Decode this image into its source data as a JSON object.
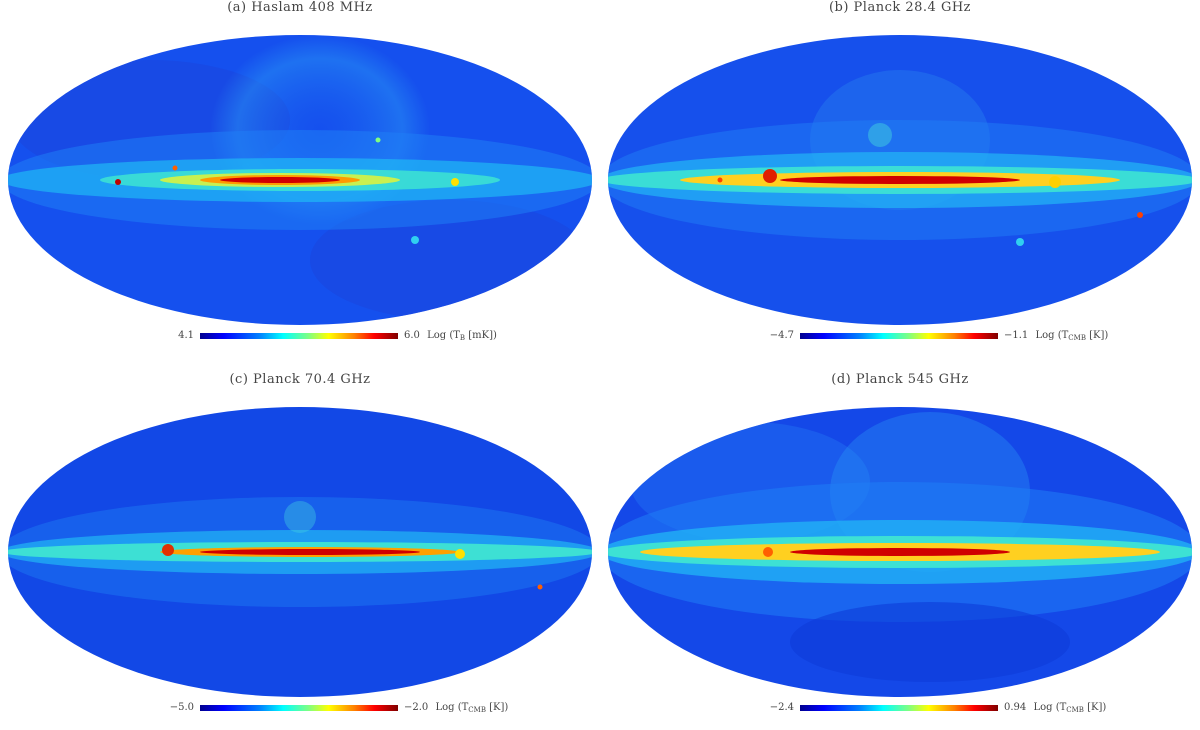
{
  "colors": {
    "background": "#ffffff",
    "colormap": [
      "#00008f",
      "#0000ff",
      "#0080ff",
      "#00ffff",
      "#80ff80",
      "#ffff00",
      "#ff8000",
      "#ff0000",
      "#800000"
    ]
  },
  "panels": [
    {
      "title": "(a) Haslam 408 MHz",
      "cbar_min": "4.1",
      "cbar_max": "6.0",
      "unit_prefix": "Log (T",
      "unit_sub": "B",
      "unit_suffix": " [mK])"
    },
    {
      "title": "(b) Planck 28.4 GHz",
      "cbar_min": "−4.7",
      "cbar_max": "−1.1",
      "unit_prefix": "Log (T",
      "unit_sub": "CMB",
      "unit_suffix": " [K])"
    },
    {
      "title": "(c) Planck 70.4 GHz",
      "cbar_min": "−5.0",
      "cbar_max": "−2.0",
      "unit_prefix": "Log (T",
      "unit_sub": "CMB",
      "unit_suffix": " [K])"
    },
    {
      "title": "(d) Planck 545 GHz",
      "cbar_min": "−2.4",
      "cbar_max": "0.94",
      "unit_prefix": "Log (T",
      "unit_sub": "CMB",
      "unit_suffix": " [K])"
    }
  ]
}
